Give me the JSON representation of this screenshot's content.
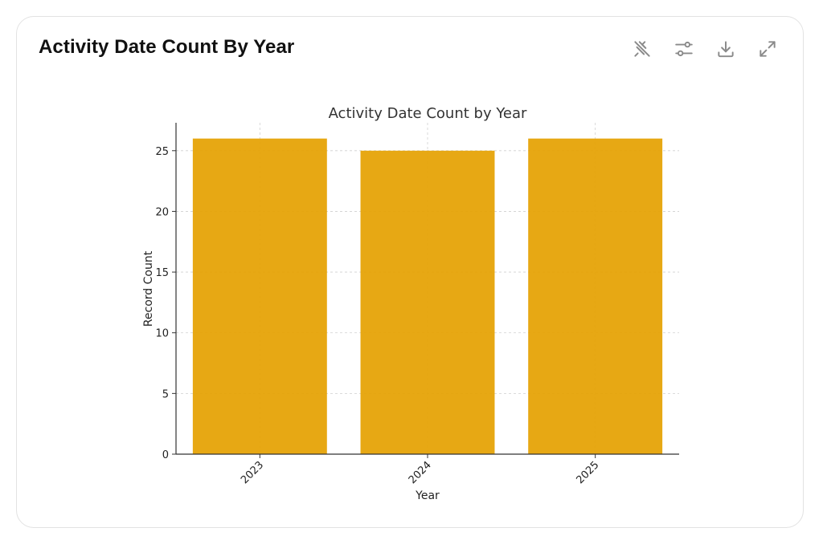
{
  "card": {
    "title": "Activity Date Count By Year"
  },
  "toolbar": {
    "items": [
      {
        "name": "pin-off-icon",
        "label": "Unpin"
      },
      {
        "name": "sliders-icon",
        "label": "Filter"
      },
      {
        "name": "download-icon",
        "label": "Download"
      },
      {
        "name": "expand-icon",
        "label": "Expand"
      }
    ]
  },
  "colors": {
    "bar": "#E5A102",
    "grid": "#cfcfcf",
    "axis": "#333333"
  },
  "chart_data": {
    "type": "bar",
    "title": "Activity Date Count by Year",
    "xlabel": "Year",
    "ylabel": "Record Count",
    "categories": [
      "2023",
      "2024",
      "2025"
    ],
    "values": [
      26,
      25,
      26
    ],
    "ylim": [
      0,
      27.3
    ],
    "yticks": [
      0,
      5,
      10,
      15,
      20,
      25
    ],
    "grid": true,
    "xtick_rotation": -45
  }
}
